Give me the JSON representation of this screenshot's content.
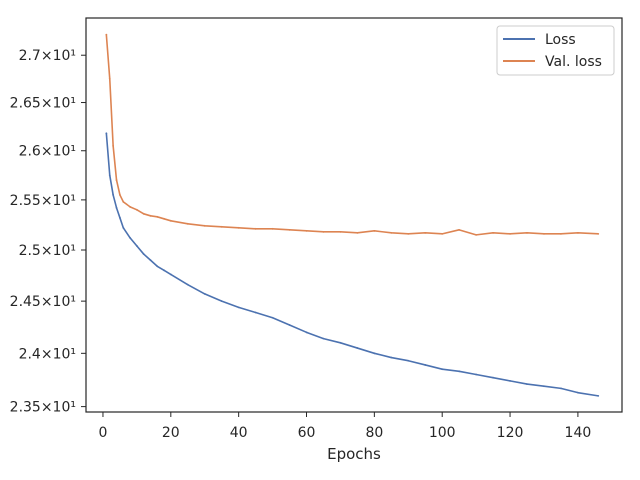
{
  "chart_data": {
    "type": "line",
    "xlabel": "Epochs",
    "ylabel": "",
    "y_scale": "log",
    "xlim": [
      -5,
      153
    ],
    "ylim": [
      23.45,
      27.4
    ],
    "x_ticks": [
      0,
      20,
      40,
      60,
      80,
      100,
      120,
      140
    ],
    "x_tick_labels": [
      "0",
      "20",
      "40",
      "60",
      "80",
      "100",
      "120",
      "140"
    ],
    "y_ticks": [
      23.5,
      24.0,
      24.5,
      25.0,
      25.5,
      26.0,
      26.5,
      27.0
    ],
    "y_tick_labels": [
      "2.35×10¹",
      "2.4×10¹",
      "2.45×10¹",
      "2.5×10¹",
      "2.55×10¹",
      "2.6×10¹",
      "2.65×10¹",
      "2.7×10¹"
    ],
    "legend_position": "top-right",
    "grid": false,
    "x": [
      1,
      2,
      3,
      4,
      5,
      6,
      8,
      10,
      12,
      14,
      16,
      18,
      20,
      25,
      30,
      35,
      40,
      45,
      50,
      55,
      60,
      65,
      70,
      75,
      80,
      85,
      90,
      95,
      100,
      105,
      110,
      115,
      120,
      125,
      130,
      135,
      140,
      146
    ],
    "series": [
      {
        "name": "Loss",
        "color": "#4c72b0",
        "values": [
          26.18,
          25.75,
          25.55,
          25.42,
          25.32,
          25.22,
          25.12,
          25.04,
          24.96,
          24.9,
          24.84,
          24.8,
          24.76,
          24.66,
          24.57,
          24.5,
          24.44,
          24.39,
          24.34,
          24.27,
          24.2,
          24.14,
          24.1,
          24.05,
          24.0,
          23.96,
          23.93,
          23.89,
          23.85,
          23.83,
          23.8,
          23.77,
          23.74,
          23.71,
          23.69,
          23.67,
          23.63,
          23.6
        ]
      },
      {
        "name": "Val. loss",
        "color": "#dd8452",
        "values": [
          27.22,
          26.75,
          26.05,
          25.7,
          25.55,
          25.48,
          25.43,
          25.4,
          25.36,
          25.34,
          25.33,
          25.31,
          25.29,
          25.26,
          25.24,
          25.23,
          25.22,
          25.21,
          25.21,
          25.2,
          25.19,
          25.18,
          25.18,
          25.17,
          25.19,
          25.17,
          25.16,
          25.17,
          25.16,
          25.2,
          25.15,
          25.17,
          25.16,
          25.17,
          25.16,
          25.16,
          25.17,
          25.16
        ]
      }
    ]
  }
}
